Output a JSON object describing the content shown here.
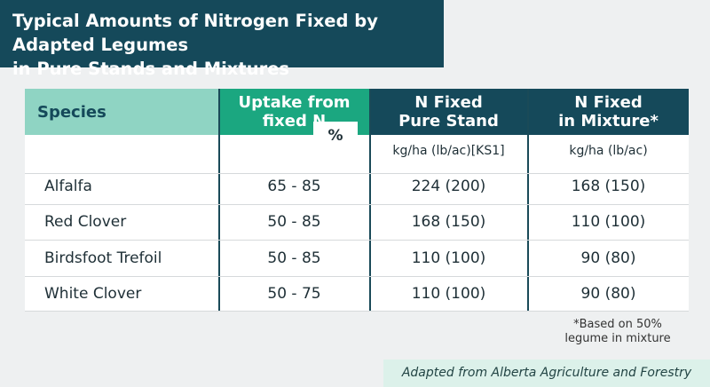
{
  "header": {
    "title_lines": [
      "Typical Amounts of Nitrogen Fixed by Adapted Legumes",
      "in Pure Stands and Mixtures"
    ]
  },
  "table": {
    "columns": [
      {
        "lines": [
          "Species"
        ]
      },
      {
        "lines": [
          "Uptake from",
          "fixed N"
        ],
        "unit": "%"
      },
      {
        "lines": [
          "N Fixed",
          "Pure Stand"
        ],
        "unit": "kg/ha (lb/ac)[KS1]"
      },
      {
        "lines": [
          "N Fixed",
          "in Mixture*"
        ],
        "unit": "kg/ha (lb/ac)"
      }
    ],
    "rows": [
      [
        "Alfalfa",
        "65 - 85",
        "224 (200)",
        "168 (150)"
      ],
      [
        "Red Clover",
        "50 - 85",
        "168 (150)",
        "110 (100)"
      ],
      [
        "Birdsfoot Trefoil",
        "50 - 85",
        "110 (100)",
        "90 (80)"
      ],
      [
        "White Clover",
        "50 - 75",
        "110 (100)",
        "90 (80)"
      ]
    ]
  },
  "footnote": {
    "lines": [
      "*Based on 50%",
      "legume in mixture"
    ]
  },
  "source": "Adapted from Alberta Agriculture and Forestry"
}
